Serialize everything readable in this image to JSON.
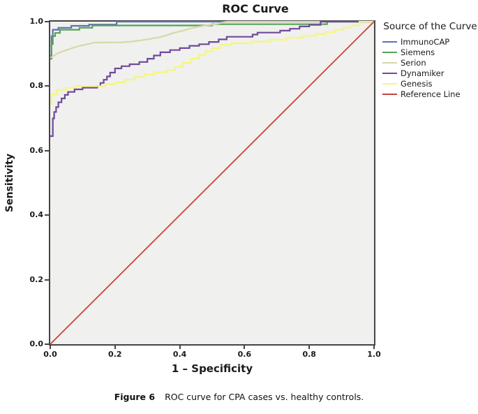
{
  "figure": {
    "title": "ROC Curve",
    "x_axis_label": "1 – Specificity",
    "y_axis_label": "Sensitivity",
    "caption": {
      "label": "Figure 6",
      "text": "ROC curve for CPA cases vs. healthy controls."
    }
  },
  "legend": {
    "title": "Source of the Curve"
  },
  "chart_data": {
    "type": "line",
    "title": "ROC Curve",
    "xlabel": "1 – Specificity",
    "ylabel": "Sensitivity",
    "xlim": [
      0,
      1
    ],
    "ylim": [
      0,
      1
    ],
    "xticks": [
      "0.0",
      "0.2",
      "0.4",
      "0.6",
      "0.8",
      "1.0"
    ],
    "yticks": [
      "0.0",
      "0.2",
      "0.4",
      "0.6",
      "0.8",
      "1.0"
    ],
    "grid": false,
    "legend_title": "Source of the Curve",
    "legend_position": "right",
    "plot_background": "#f0f0ee",
    "frame_color": "#454545",
    "series": [
      {
        "name": "ImmunoCAP",
        "color": "#5f71b5",
        "points": [
          [
            0,
            0.893
          ],
          [
            0.004,
            0.893
          ],
          [
            0.004,
            0.955
          ],
          [
            0.008,
            0.955
          ],
          [
            0.008,
            0.975
          ],
          [
            0.025,
            0.975
          ],
          [
            0.025,
            0.981
          ],
          [
            0.065,
            0.981
          ],
          [
            0.065,
            0.987
          ],
          [
            0.12,
            0.987
          ],
          [
            0.12,
            0.991
          ],
          [
            0.205,
            0.991
          ],
          [
            0.205,
            1.0
          ],
          [
            1,
            1.0
          ]
        ]
      },
      {
        "name": "Siemens",
        "color": "#55a455",
        "points": [
          [
            0,
            0.885
          ],
          [
            0.004,
            0.885
          ],
          [
            0.004,
            0.93
          ],
          [
            0.008,
            0.93
          ],
          [
            0.008,
            0.955
          ],
          [
            0.015,
            0.955
          ],
          [
            0.015,
            0.965
          ],
          [
            0.03,
            0.965
          ],
          [
            0.03,
            0.975
          ],
          [
            0.09,
            0.975
          ],
          [
            0.09,
            0.981
          ],
          [
            0.13,
            0.981
          ],
          [
            0.13,
            0.988
          ],
          [
            0.5,
            0.988
          ],
          [
            0.5,
            0.992
          ],
          [
            0.855,
            0.992
          ],
          [
            0.855,
            1.0
          ],
          [
            1,
            1.0
          ]
        ]
      },
      {
        "name": "Serion",
        "color": "#d8d8a8",
        "points": [
          [
            0,
            0.888
          ],
          [
            0.012,
            0.895
          ],
          [
            0.02,
            0.9
          ],
          [
            0.035,
            0.907
          ],
          [
            0.05,
            0.912
          ],
          [
            0.065,
            0.917
          ],
          [
            0.08,
            0.922
          ],
          [
            0.1,
            0.927
          ],
          [
            0.125,
            0.932
          ],
          [
            0.135,
            0.935
          ],
          [
            0.22,
            0.936
          ],
          [
            0.25,
            0.938
          ],
          [
            0.28,
            0.942
          ],
          [
            0.31,
            0.947
          ],
          [
            0.34,
            0.952
          ],
          [
            0.36,
            0.958
          ],
          [
            0.38,
            0.965
          ],
          [
            0.41,
            0.972
          ],
          [
            0.43,
            0.978
          ],
          [
            0.45,
            0.983
          ],
          [
            0.48,
            0.988
          ],
          [
            0.51,
            0.992
          ],
          [
            0.545,
            1.0
          ],
          [
            1,
            1.0
          ]
        ]
      },
      {
        "name": "Dynamiker",
        "color": "#6f4a9c",
        "points": [
          [
            0,
            0.645
          ],
          [
            0.008,
            0.645
          ],
          [
            0.008,
            0.7
          ],
          [
            0.012,
            0.7
          ],
          [
            0.012,
            0.72
          ],
          [
            0.018,
            0.72
          ],
          [
            0.018,
            0.735
          ],
          [
            0.025,
            0.735
          ],
          [
            0.025,
            0.75
          ],
          [
            0.035,
            0.75
          ],
          [
            0.035,
            0.762
          ],
          [
            0.045,
            0.762
          ],
          [
            0.045,
            0.773
          ],
          [
            0.055,
            0.773
          ],
          [
            0.055,
            0.782
          ],
          [
            0.075,
            0.782
          ],
          [
            0.075,
            0.79
          ],
          [
            0.1,
            0.79
          ],
          [
            0.1,
            0.795
          ],
          [
            0.145,
            0.795
          ],
          [
            0.145,
            0.8
          ],
          [
            0.155,
            0.8
          ],
          [
            0.155,
            0.81
          ],
          [
            0.165,
            0.81
          ],
          [
            0.165,
            0.82
          ],
          [
            0.175,
            0.82
          ],
          [
            0.175,
            0.83
          ],
          [
            0.185,
            0.83
          ],
          [
            0.185,
            0.842
          ],
          [
            0.2,
            0.842
          ],
          [
            0.2,
            0.855
          ],
          [
            0.22,
            0.855
          ],
          [
            0.22,
            0.862
          ],
          [
            0.245,
            0.862
          ],
          [
            0.245,
            0.868
          ],
          [
            0.275,
            0.868
          ],
          [
            0.275,
            0.875
          ],
          [
            0.3,
            0.875
          ],
          [
            0.3,
            0.885
          ],
          [
            0.32,
            0.885
          ],
          [
            0.32,
            0.895
          ],
          [
            0.34,
            0.895
          ],
          [
            0.34,
            0.905
          ],
          [
            0.37,
            0.905
          ],
          [
            0.37,
            0.912
          ],
          [
            0.4,
            0.912
          ],
          [
            0.4,
            0.918
          ],
          [
            0.43,
            0.918
          ],
          [
            0.43,
            0.925
          ],
          [
            0.46,
            0.925
          ],
          [
            0.46,
            0.93
          ],
          [
            0.49,
            0.93
          ],
          [
            0.49,
            0.937
          ],
          [
            0.52,
            0.937
          ],
          [
            0.52,
            0.945
          ],
          [
            0.545,
            0.945
          ],
          [
            0.545,
            0.953
          ],
          [
            0.625,
            0.953
          ],
          [
            0.625,
            0.96
          ],
          [
            0.64,
            0.96
          ],
          [
            0.64,
            0.966
          ],
          [
            0.71,
            0.966
          ],
          [
            0.71,
            0.972
          ],
          [
            0.74,
            0.972
          ],
          [
            0.74,
            0.978
          ],
          [
            0.77,
            0.978
          ],
          [
            0.77,
            0.985
          ],
          [
            0.8,
            0.985
          ],
          [
            0.8,
            0.99
          ],
          [
            0.835,
            0.99
          ],
          [
            0.835,
            1.0
          ],
          [
            1,
            1.0
          ]
        ]
      },
      {
        "name": "Genesis",
        "color": "#f6f67c",
        "points": [
          [
            0,
            0.745
          ],
          [
            0.004,
            0.745
          ],
          [
            0.004,
            0.775
          ],
          [
            0.02,
            0.775
          ],
          [
            0.02,
            0.788
          ],
          [
            0.05,
            0.788
          ],
          [
            0.05,
            0.795
          ],
          [
            0.08,
            0.795
          ],
          [
            0.08,
            0.8
          ],
          [
            0.17,
            0.8
          ],
          [
            0.17,
            0.806
          ],
          [
            0.2,
            0.806
          ],
          [
            0.2,
            0.812
          ],
          [
            0.23,
            0.812
          ],
          [
            0.23,
            0.82
          ],
          [
            0.26,
            0.82
          ],
          [
            0.26,
            0.828
          ],
          [
            0.29,
            0.828
          ],
          [
            0.29,
            0.836
          ],
          [
            0.32,
            0.836
          ],
          [
            0.32,
            0.843
          ],
          [
            0.36,
            0.843
          ],
          [
            0.36,
            0.85
          ],
          [
            0.385,
            0.85
          ],
          [
            0.385,
            0.86
          ],
          [
            0.41,
            0.86
          ],
          [
            0.41,
            0.872
          ],
          [
            0.435,
            0.872
          ],
          [
            0.435,
            0.885
          ],
          [
            0.46,
            0.885
          ],
          [
            0.46,
            0.897
          ],
          [
            0.48,
            0.897
          ],
          [
            0.48,
            0.908
          ],
          [
            0.5,
            0.908
          ],
          [
            0.5,
            0.918
          ],
          [
            0.525,
            0.918
          ],
          [
            0.525,
            0.928
          ],
          [
            0.56,
            0.928
          ],
          [
            0.56,
            0.933
          ],
          [
            0.62,
            0.933
          ],
          [
            0.62,
            0.938
          ],
          [
            0.68,
            0.938
          ],
          [
            0.68,
            0.944
          ],
          [
            0.73,
            0.944
          ],
          [
            0.73,
            0.95
          ],
          [
            0.78,
            0.95
          ],
          [
            0.78,
            0.956
          ],
          [
            0.82,
            0.956
          ],
          [
            0.82,
            0.962
          ],
          [
            0.85,
            0.962
          ],
          [
            0.85,
            0.968
          ],
          [
            0.88,
            0.968
          ],
          [
            0.88,
            0.975
          ],
          [
            0.905,
            0.975
          ],
          [
            0.905,
            0.982
          ],
          [
            0.93,
            0.982
          ],
          [
            0.93,
            0.988
          ],
          [
            0.955,
            0.988
          ],
          [
            0.955,
            1.0
          ],
          [
            1,
            1.0
          ]
        ]
      },
      {
        "name": "Reference Line",
        "color": "#c8433d",
        "points": [
          [
            0,
            0
          ],
          [
            1,
            1
          ]
        ]
      }
    ]
  }
}
